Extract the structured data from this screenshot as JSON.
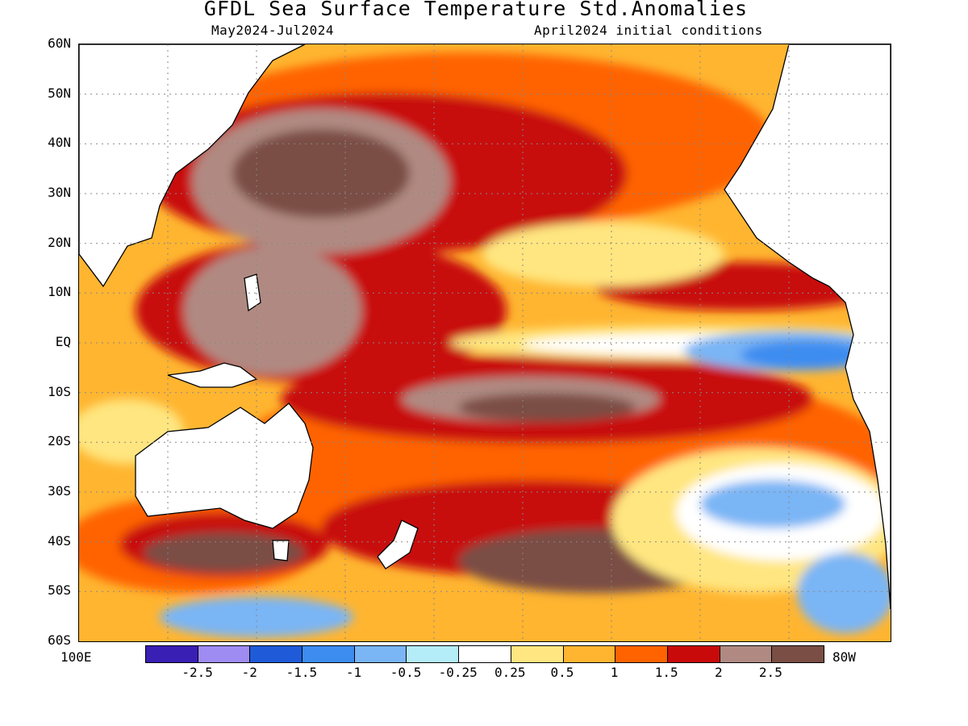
{
  "title": "GFDL Sea Surface Temperature Std.Anomalies",
  "subtitle_left": "May2024-Jul2024",
  "subtitle_right": "April2024 initial conditions",
  "lat_labels": [
    "60N",
    "50N",
    "40N",
    "30N",
    "20N",
    "10N",
    "EQ",
    "10S",
    "20S",
    "30S",
    "40S",
    "50S",
    "60S"
  ],
  "lon_labels": {
    "left": "100E",
    "right": "80W"
  },
  "legend": {
    "colors": [
      "#3a1fb4",
      "#9f8cf2",
      "#1f5ad8",
      "#3d8cf0",
      "#7ab5f5",
      "#b4ecf8",
      "#ffffff",
      "#ffe680",
      "#ffb530",
      "#ff6300",
      "#c80a0a",
      "#b08a82",
      "#7a4e44"
    ],
    "tick_labels": [
      "-2.5",
      "-2",
      "-1.5",
      "-1",
      "-0.5",
      "-0.25",
      "0.25",
      "0.5",
      "1",
      "1.5",
      "2",
      "2.5"
    ]
  }
}
